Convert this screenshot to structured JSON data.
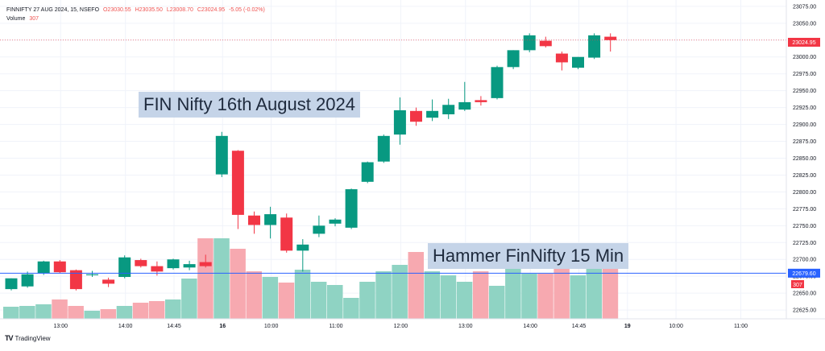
{
  "header": {
    "symbol_line": "FINNIFTY 27 AUG 2024, 15, NSEFO",
    "open": "O23030.55",
    "high": "H23035.50",
    "low": "L23008.70",
    "close": "C23024.95",
    "change": "-5.05 (-0.02%)",
    "volume_label": "Volume",
    "volume_value": "307"
  },
  "annotations": {
    "title_box": "FIN Nifty 16th August 2024",
    "pattern_box": "Hammer FinNifty 15 Min"
  },
  "price_labels": {
    "last_price": "23024.95",
    "hline_price": "22679.60",
    "volume_tag": "307"
  },
  "footer": {
    "brand": "TradingView"
  },
  "colors": {
    "up": "#089981",
    "down": "#f23645",
    "vol_up": "#8fd3c3",
    "vol_down": "#f7a9b0",
    "hline": "#2962ff",
    "grid": "#f0f3fa"
  },
  "chart_data": {
    "type": "candlestick",
    "yticks": [
      22625,
      22650,
      22675,
      22700,
      22725,
      22750,
      22775,
      22800,
      22825,
      22850,
      22875,
      22900,
      22925,
      22950,
      22975,
      23000,
      23025,
      23050,
      23075
    ],
    "ylim": [
      22612,
      23082
    ],
    "xticks": [
      {
        "label": "13:00",
        "bar": 3
      },
      {
        "label": "14:00",
        "bar": 7
      },
      {
        "label": "14:45",
        "bar": 10
      },
      {
        "label": "16",
        "bar": 13
      },
      {
        "label": "10:00",
        "bar": 16
      },
      {
        "label": "11:00",
        "bar": 20
      },
      {
        "label": "12:00",
        "bar": 24
      },
      {
        "label": "13:00",
        "bar": 28
      },
      {
        "label": "14:00",
        "bar": 32
      },
      {
        "label": "14:45",
        "bar": 35
      },
      {
        "label": "19",
        "bar": 38
      },
      {
        "label": "10:00",
        "bar": 41
      },
      {
        "label": "11:00",
        "bar": 45
      }
    ],
    "horizontal_line": 22679.6,
    "candles": [
      {
        "o": 22656,
        "h": 22672,
        "l": 22654,
        "c": 22672
      },
      {
        "o": 22660,
        "h": 22682,
        "l": 22658,
        "c": 22678
      },
      {
        "o": 22680,
        "h": 22698,
        "l": 22677,
        "c": 22697
      },
      {
        "o": 22697,
        "h": 22699,
        "l": 22680,
        "c": 22681
      },
      {
        "o": 22684,
        "h": 22685,
        "l": 22654,
        "c": 22656
      },
      {
        "o": 22678,
        "h": 22683,
        "l": 22674,
        "c": 22678
      },
      {
        "o": 22670,
        "h": 22673,
        "l": 22659,
        "c": 22664
      },
      {
        "o": 22674,
        "h": 22706,
        "l": 22672,
        "c": 22703
      },
      {
        "o": 22699,
        "h": 22701,
        "l": 22688,
        "c": 22690
      },
      {
        "o": 22690,
        "h": 22697,
        "l": 22676,
        "c": 22682
      },
      {
        "o": 22687,
        "h": 22701,
        "l": 22685,
        "c": 22700
      },
      {
        "o": 22688,
        "h": 22698,
        "l": 22684,
        "c": 22693
      },
      {
        "o": 22696,
        "h": 22707,
        "l": 22688,
        "c": 22690
      },
      {
        "o": 22826,
        "h": 22889,
        "l": 22822,
        "c": 22883
      },
      {
        "o": 22861,
        "h": 22862,
        "l": 22745,
        "c": 22766
      },
      {
        "o": 22765,
        "h": 22771,
        "l": 22738,
        "c": 22751
      },
      {
        "o": 22751,
        "h": 22778,
        "l": 22731,
        "c": 22767
      },
      {
        "o": 22762,
        "h": 22768,
        "l": 22710,
        "c": 22713
      },
      {
        "o": 22713,
        "h": 22730,
        "l": 22682,
        "c": 22722
      },
      {
        "o": 22738,
        "h": 22765,
        "l": 22733,
        "c": 22750
      },
      {
        "o": 22753,
        "h": 22761,
        "l": 22749,
        "c": 22759
      },
      {
        "o": 22747,
        "h": 22805,
        "l": 22745,
        "c": 22804
      },
      {
        "o": 22815,
        "h": 22845,
        "l": 22813,
        "c": 22844
      },
      {
        "o": 22845,
        "h": 22885,
        "l": 22843,
        "c": 22883
      },
      {
        "o": 22885,
        "h": 22940,
        "l": 22870,
        "c": 22921
      },
      {
        "o": 22920,
        "h": 22925,
        "l": 22898,
        "c": 22904
      },
      {
        "o": 22910,
        "h": 22937,
        "l": 22905,
        "c": 22920
      },
      {
        "o": 22915,
        "h": 22938,
        "l": 22908,
        "c": 22929
      },
      {
        "o": 22922,
        "h": 22963,
        "l": 22920,
        "c": 22933
      },
      {
        "o": 22936,
        "h": 22942,
        "l": 22928,
        "c": 22933
      },
      {
        "o": 22939,
        "h": 22987,
        "l": 22937,
        "c": 22985
      },
      {
        "o": 22985,
        "h": 23010,
        "l": 22982,
        "c": 23010
      },
      {
        "o": 23010,
        "h": 23035,
        "l": 23007,
        "c": 23032
      },
      {
        "o": 23024,
        "h": 23030,
        "l": 23014,
        "c": 23016
      },
      {
        "o": 23005,
        "h": 23008,
        "l": 22980,
        "c": 22992
      },
      {
        "o": 22984,
        "h": 23000,
        "l": 22982,
        "c": 23000
      },
      {
        "o": 22999,
        "h": 23035,
        "l": 22997,
        "c": 23032
      },
      {
        "o": 23030,
        "h": 23035,
        "l": 23008,
        "c": 23025
      }
    ],
    "volume": [
      15,
      16,
      18,
      24,
      16,
      10,
      12,
      16,
      20,
      22,
      24,
      50,
      100,
      100,
      87,
      59,
      52,
      45,
      61,
      46,
      42,
      26,
      46,
      59,
      67,
      83,
      59,
      54,
      46,
      59,
      41,
      67,
      56,
      56,
      68,
      54,
      77,
      91
    ]
  }
}
